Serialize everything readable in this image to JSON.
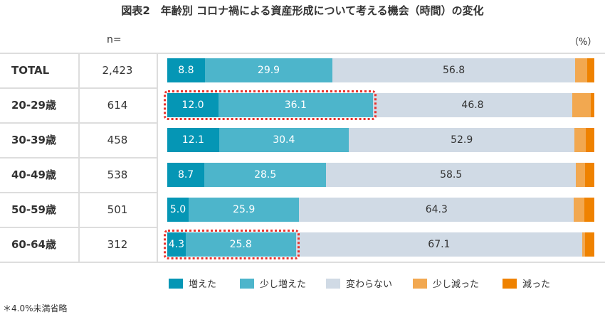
{
  "chart_data": {
    "type": "bar",
    "orientation": "horizontal-stacked-100",
    "title": "図表2　年齢別 コロナ禍による資産形成について考える機会（時間）の変化",
    "n_label": "n=",
    "unit": "（%）",
    "categories": [
      "TOTAL",
      "20-29歳",
      "30-39歳",
      "40-49歳",
      "50-59歳",
      "60-64歳"
    ],
    "n": [
      "2,423",
      "614",
      "458",
      "538",
      "501",
      "312"
    ],
    "series": [
      {
        "name": "増えた",
        "color": "#0596b5",
        "values": [
          8.8,
          12.0,
          12.1,
          8.7,
          5.0,
          4.3
        ],
        "labeled": true
      },
      {
        "name": "少し増えた",
        "color": "#4db5cb",
        "values": [
          29.9,
          36.1,
          30.4,
          28.5,
          25.9,
          25.8
        ],
        "labeled": true
      },
      {
        "name": "変わらない",
        "color": "#d0dae5",
        "values": [
          56.8,
          46.8,
          52.9,
          58.5,
          64.3,
          67.1
        ],
        "labeled": true
      },
      {
        "name": "少し減った",
        "color": "#f2a850",
        "values": [
          2.9,
          4.3,
          2.6,
          2.2,
          2.5,
          0.7
        ],
        "labeled": false
      },
      {
        "name": "減った",
        "color": "#ef8200",
        "values": [
          1.6,
          0.8,
          2.0,
          2.1,
          2.3,
          2.1
        ],
        "labeled": false
      }
    ],
    "highlighted_rows": [
      "20-29歳",
      "60-64歳"
    ],
    "xlim": [
      0,
      100
    ],
    "legend_position": "bottom",
    "note": "＊4.0%未満省略"
  }
}
